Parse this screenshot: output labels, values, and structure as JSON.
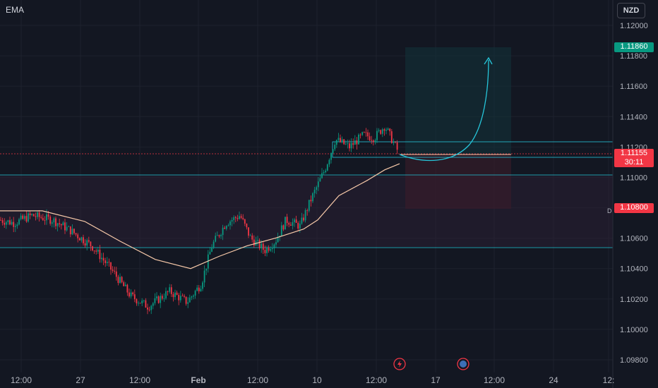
{
  "indicator": "EMA",
  "currency": "NZD",
  "markers": {
    "current_price": "1.11155",
    "countdown": "30:11",
    "target_price": "1.11860",
    "stop_price": "1.10800",
    "d_label": "D"
  },
  "chart_data": {
    "type": "candlestick",
    "y_ticks": [
      "1.12000",
      "1.11800",
      "1.11600",
      "1.11400",
      "1.11200",
      "1.11000",
      "1.10800",
      "1.10600",
      "1.10400",
      "1.10200",
      "1.10000",
      "1.09800"
    ],
    "x_ticks": [
      "12:00",
      "27",
      "12:00",
      "Feb",
      "12:00",
      "10",
      "12:00",
      "17",
      "12:00",
      "24",
      "12:"
    ],
    "ylim": [
      1.0975,
      1.1215
    ],
    "colors": {
      "up": "#089981",
      "down": "#f23645",
      "ema": "#f7c9a9",
      "projection": "#26c6da"
    }
  }
}
